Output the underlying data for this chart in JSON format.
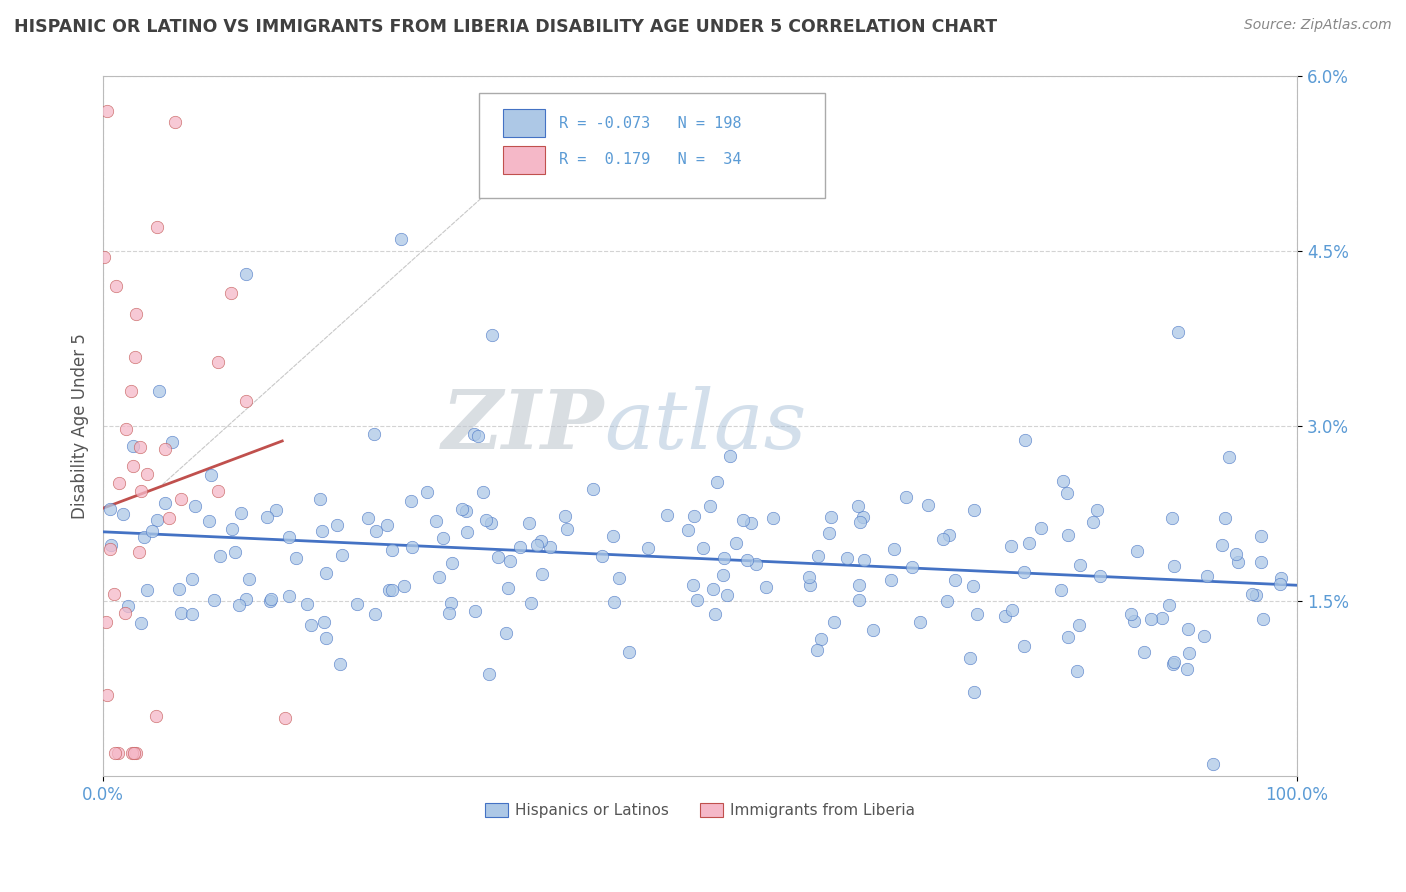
{
  "title": "HISPANIC OR LATINO VS IMMIGRANTS FROM LIBERIA DISABILITY AGE UNDER 5 CORRELATION CHART",
  "source": "Source: ZipAtlas.com",
  "ylabel": "Disability Age Under 5",
  "xlim": [
    0,
    1.0
  ],
  "ylim": [
    0,
    0.06
  ],
  "yticks": [
    0.015,
    0.03,
    0.045,
    0.06
  ],
  "ytick_labels": [
    "1.5%",
    "3.0%",
    "4.5%",
    "6.0%"
  ],
  "xtick_labels": [
    "0.0%",
    "100.0%"
  ],
  "xticks": [
    0.0,
    1.0
  ],
  "r1": -0.073,
  "n1": 198,
  "r2": 0.179,
  "n2": 34,
  "color_blue": "#adc8e6",
  "color_pink": "#f5b8c8",
  "line_color_blue": "#4472c4",
  "line_color_pink": "#c0504d",
  "watermark_zip": "ZIP",
  "watermark_atlas": "atlas",
  "legend_label1": "Hispanics or Latinos",
  "legend_label2": "Immigrants from Liberia",
  "background_color": "#ffffff",
  "grid_color": "#c8c8c8",
  "title_color": "#404040",
  "tick_color": "#5b9bd5"
}
